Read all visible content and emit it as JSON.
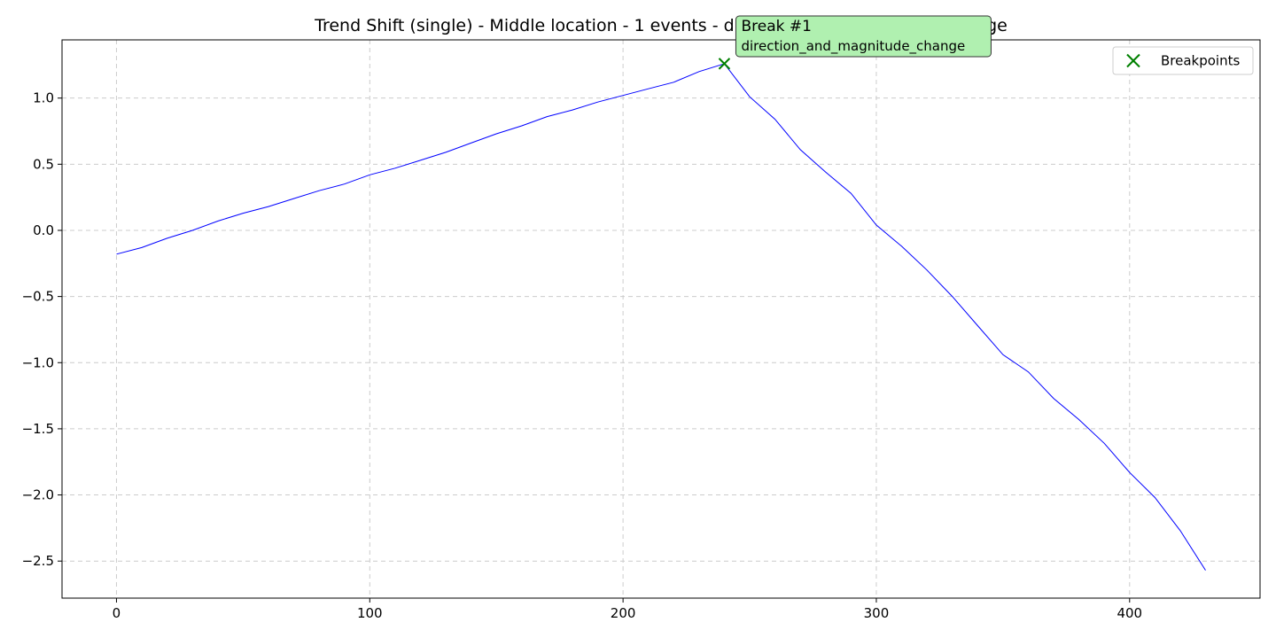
{
  "chart_data": {
    "type": "line",
    "title": "Trend Shift (single) - Middle location - 1 events - direction_and_magnitude_change",
    "xlabel": "",
    "ylabel": "",
    "xlim": [
      -21.5,
      451.5
    ],
    "ylim": [
      -2.78,
      1.44
    ],
    "x_ticks": [
      0,
      100,
      200,
      300,
      400
    ],
    "y_ticks": [
      1.0,
      0.5,
      0.0,
      -0.5,
      -1.0,
      -1.5,
      -2.0,
      -2.5
    ],
    "x_tick_labels": [
      "0",
      "100",
      "200",
      "300",
      "400"
    ],
    "y_tick_labels": [
      "1.0",
      "0.5",
      "0.0",
      "−0.5",
      "−1.0",
      "−1.5",
      "−2.0",
      "−2.5"
    ],
    "grid": true,
    "series": [
      {
        "style": "line",
        "color": "#0000ff",
        "x": [
          0,
          10,
          20,
          30,
          40,
          50,
          60,
          70,
          80,
          90,
          100,
          110,
          120,
          130,
          140,
          150,
          160,
          170,
          180,
          190,
          200,
          210,
          220,
          230,
          240,
          250,
          260,
          270,
          280,
          290,
          300,
          310,
          320,
          330,
          340,
          350,
          360,
          370,
          380,
          390,
          400,
          410,
          420,
          430
        ],
        "y": [
          -0.18,
          -0.13,
          -0.06,
          0.0,
          0.07,
          0.13,
          0.18,
          0.24,
          0.3,
          0.35,
          0.42,
          0.47,
          0.53,
          0.59,
          0.66,
          0.73,
          0.79,
          0.86,
          0.91,
          0.97,
          1.02,
          1.07,
          1.12,
          1.2,
          1.26,
          1.01,
          0.84,
          0.61,
          0.44,
          0.28,
          0.04,
          -0.12,
          -0.3,
          -0.5,
          -0.72,
          -0.94,
          -1.07,
          -1.27,
          -1.43,
          -1.61,
          -1.83,
          -2.02,
          -2.27,
          -2.57
        ]
      },
      {
        "name": "Breakpoints",
        "style": "marker",
        "marker": "x",
        "color": "#008000",
        "x": [
          240
        ],
        "y": [
          1.26
        ]
      }
    ],
    "legend": {
      "position": "top-right",
      "entries": [
        "Breakpoints"
      ]
    },
    "annotations": [
      {
        "line1": "Break #1",
        "line2": "direction_and_magnitude_change",
        "x": 240,
        "y": 1.26,
        "box_color": "#b0f0b0"
      }
    ]
  }
}
